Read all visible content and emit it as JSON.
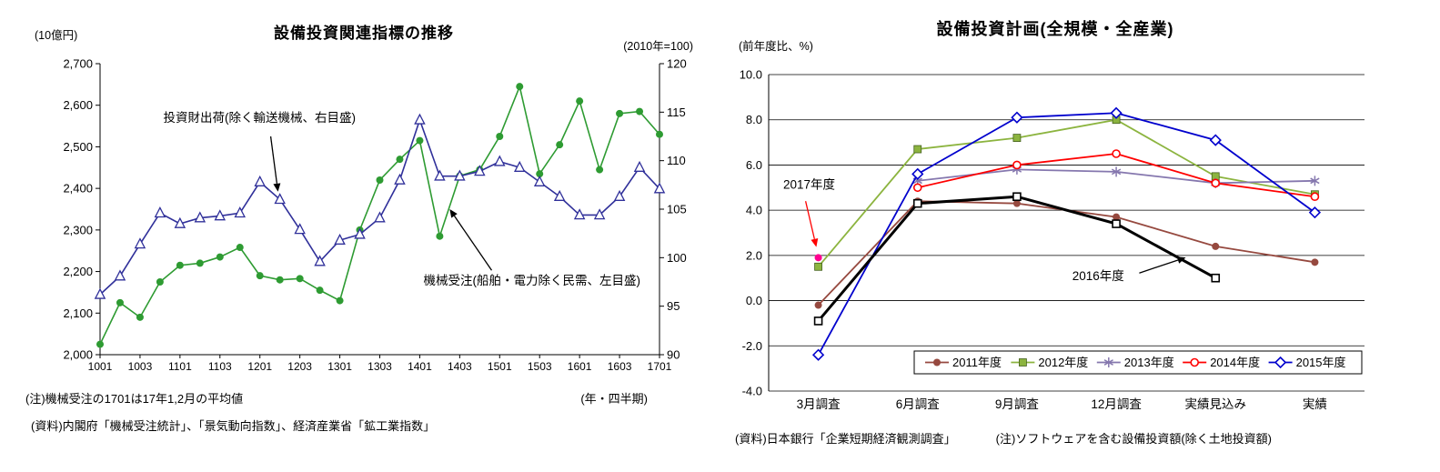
{
  "page": {
    "background": "#ffffff"
  },
  "left_panel": {
    "title": "設備投資関連指標の推移",
    "y_left_unit": "(10億円)",
    "y_right_unit": "(2010年=100)",
    "x_unit": "(年・四半期)",
    "note": "(注)機械受注の1701は17年1,2月の平均値",
    "source": "(資料)内閣府「機械受注統計」、「景気動向指数」、経済産業省「鉱工業指数」"
  },
  "right_panel": {
    "title": "設備投資計画(全規模・全産業)",
    "y_unit": "(前年度比、%)",
    "source": "(資料)日本銀行「企業短期経済観測調査」",
    "note": "(注)ソフトウェアを含む設備投資額(除く土地投資額)"
  },
  "chart_data": [
    {
      "type": "line",
      "title": "設備投資関連指標の推移",
      "x": [
        "1001",
        "1002",
        "1003",
        "1004",
        "1101",
        "1102",
        "1103",
        "1104",
        "1201",
        "1202",
        "1203",
        "1204",
        "1301",
        "1302",
        "1303",
        "1304",
        "1401",
        "1402",
        "1403",
        "1404",
        "1501",
        "1502",
        "1503",
        "1504",
        "1601",
        "1602",
        "1603",
        "1604",
        "1701"
      ],
      "x_tick_labels": [
        "1001",
        "1003",
        "1101",
        "1103",
        "1201",
        "1203",
        "1301",
        "1303",
        "1401",
        "1403",
        "1501",
        "1503",
        "1601",
        "1603",
        "1701"
      ],
      "y_left": {
        "unit": "(10億円)",
        "min": 2000,
        "max": 2700,
        "ticks": [
          "2,000",
          "2,100",
          "2,200",
          "2,300",
          "2,400",
          "2,500",
          "2,600",
          "2,700"
        ]
      },
      "y_right": {
        "unit": "(2010年=100)",
        "min": 90,
        "max": 120,
        "ticks": [
          "90",
          "95",
          "100",
          "105",
          "110",
          "115",
          "120"
        ]
      },
      "grid": false,
      "series": [
        {
          "name": "機械受注(船舶・電力除く民需、左目盛)",
          "axis": "left",
          "color": "#2e9b32",
          "marker": "circle",
          "line_width": 1.6,
          "values": [
            2025,
            2125,
            2090,
            2175,
            2215,
            2220,
            2235,
            2258,
            2190,
            2180,
            2183,
            2155,
            2130,
            2300,
            2420,
            2470,
            2515,
            2285,
            2430,
            2445,
            2525,
            2645,
            2435,
            2505,
            2610,
            2445,
            2580,
            2585,
            2530
          ]
        },
        {
          "name": "投資財出荷(除く輸送機械、右目盛)",
          "axis": "right",
          "color": "#30309a",
          "marker": "triangle-open",
          "line_width": 1.6,
          "values": [
            96.2,
            98.1,
            101.4,
            104.6,
            103.5,
            104.1,
            104.3,
            104.6,
            107.8,
            106.0,
            102.9,
            99.6,
            101.8,
            102.4,
            104.1,
            108.0,
            114.2,
            108.4,
            108.4,
            108.9,
            109.9,
            109.3,
            107.8,
            106.3,
            104.4,
            104.4,
            106.3,
            109.3,
            107.1
          ]
        }
      ],
      "annotations": [
        {
          "text": "投資財出荷(除く輸送機械、右目盛)",
          "text_frac": [
            0.285,
            0.2
          ],
          "arrow_from_frac": [
            0.305,
            0.25
          ],
          "arrow_to_frac": [
            0.318,
            0.44
          ],
          "arrow_color": "#000000"
        },
        {
          "text": "機械受注(船舶・電力除く民需、左目盛)",
          "text_frac": [
            0.772,
            0.76
          ],
          "arrow_from_frac": [
            0.7,
            0.71
          ],
          "arrow_to_frac": [
            0.625,
            0.5
          ],
          "arrow_color": "#000000"
        }
      ]
    },
    {
      "type": "line",
      "title": "設備投資計画(全規模・全産業)",
      "categories": [
        "3月調査",
        "6月調査",
        "9月調査",
        "12月調査",
        "実績見込み",
        "実績"
      ],
      "ylabel": "(前年度比、%)",
      "ylim": [
        -4.0,
        10.0
      ],
      "y_ticks": [
        "-4.0",
        "-2.0",
        "0.0",
        "2.0",
        "4.0",
        "6.0",
        "8.0",
        "10.0"
      ],
      "grid": true,
      "series": [
        {
          "name": "2011年度",
          "color": "#96493f",
          "marker": "circle",
          "line_width": 1.8,
          "legend": true,
          "values": [
            -0.2,
            4.4,
            4.3,
            3.7,
            2.4,
            1.7
          ]
        },
        {
          "name": "2012年度",
          "color": "#8cb43f",
          "marker": "square",
          "line_width": 1.8,
          "legend": true,
          "values": [
            1.5,
            6.7,
            7.2,
            8.0,
            5.5,
            4.7
          ]
        },
        {
          "name": "2013年度",
          "color": "#8577ae",
          "marker": "asterisk",
          "line_width": 1.8,
          "legend": true,
          "values": [
            null,
            5.3,
            5.8,
            5.7,
            5.2,
            5.3
          ]
        },
        {
          "name": "2014年度",
          "color": "#ff0000",
          "marker": "circle-open",
          "line_width": 1.8,
          "legend": true,
          "values": [
            null,
            5.0,
            6.0,
            6.5,
            5.2,
            4.6
          ]
        },
        {
          "name": "2015年度",
          "color": "#0000cd",
          "marker": "diamond-open",
          "line_width": 1.8,
          "legend": true,
          "values": [
            -2.4,
            5.6,
            8.1,
            8.3,
            7.1,
            3.9
          ]
        },
        {
          "name": "2016年度",
          "color": "#000000",
          "marker": "square-open",
          "line_width": 3,
          "legend": false,
          "values": [
            -0.9,
            4.3,
            4.6,
            3.4,
            1.0,
            null
          ]
        },
        {
          "name": "2017年度",
          "color": "#ff0090",
          "marker": "circle",
          "line_width": 0,
          "legend": false,
          "values": [
            1.9,
            null,
            null,
            null,
            null,
            null
          ]
        }
      ],
      "annotations": [
        {
          "text": "2017年度",
          "text_frac": [
            0.068,
            0.36
          ],
          "arrow_from_frac": [
            0.062,
            0.4
          ],
          "arrow_to_frac": [
            0.08,
            0.545
          ],
          "arrow_color": "#ff0000"
        },
        {
          "text": "2016年度",
          "text_frac": [
            0.553,
            0.65
          ],
          "arrow_from_frac": [
            0.622,
            0.627
          ],
          "arrow_to_frac": [
            0.7,
            0.578
          ],
          "arrow_color": "#000000"
        }
      ],
      "legend": {
        "position": "bottom-inside",
        "entries": [
          "2011年度",
          "2012年度",
          "2013年度",
          "2014年度",
          "2015年度"
        ]
      }
    }
  ]
}
